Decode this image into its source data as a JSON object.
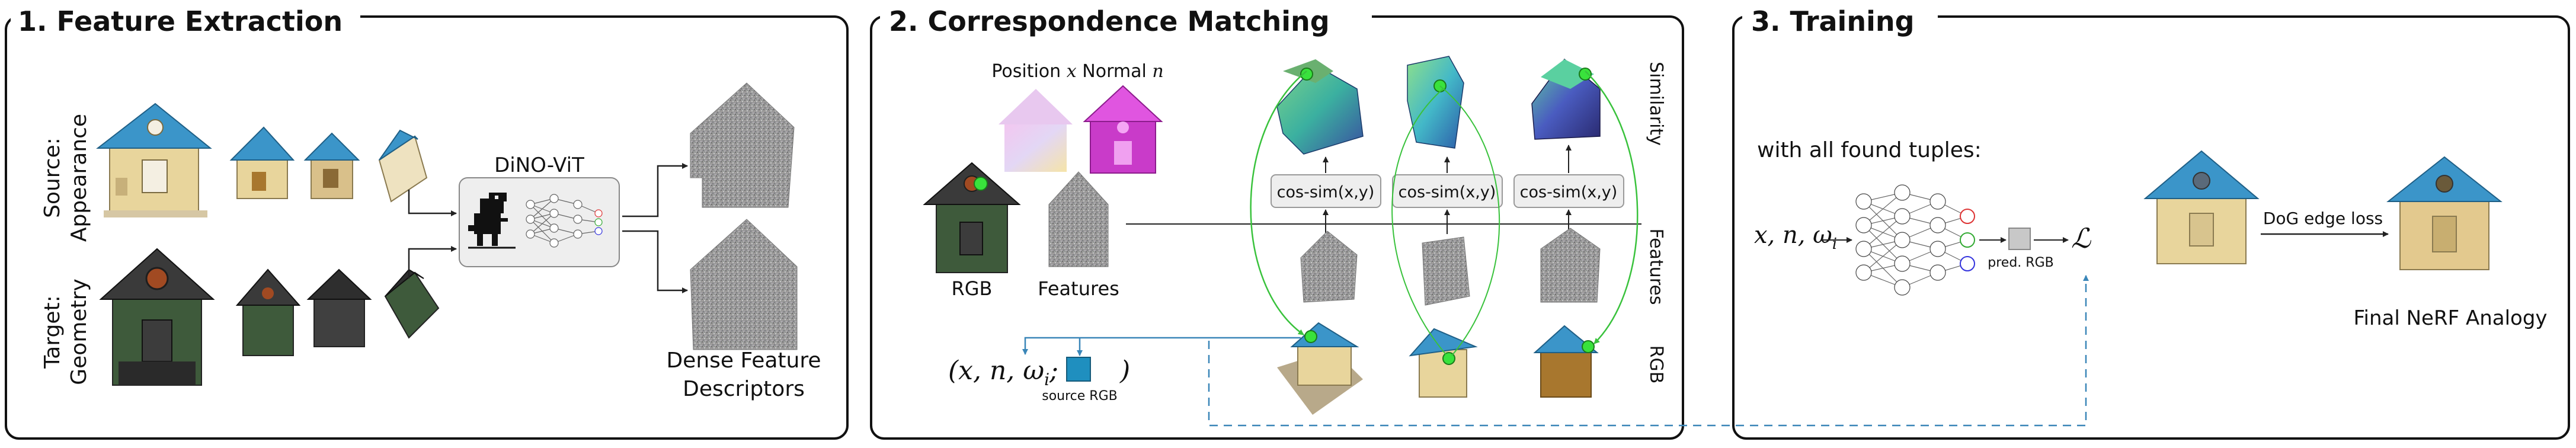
{
  "panels": [
    {
      "title": "1. Feature Extraction"
    },
    {
      "title": "2. Correspondence Matching"
    },
    {
      "title": "3. Training"
    }
  ],
  "extraction": {
    "source_label_1": "Source:",
    "source_label_2": "Appearance",
    "target_label_1": "Target:",
    "target_label_2": "Geometry",
    "model_label": "DiNO-ViT",
    "output_label_1": "Dense Feature",
    "output_label_2": "Descriptors"
  },
  "matching": {
    "position_label": "Position",
    "position_symbol": "x",
    "normal_label": "Normal",
    "normal_symbol": "n",
    "rgb_label": "RGB",
    "features_label": "Features",
    "cos_sim_label": "cos-sim(x,y)",
    "side_label_similarity": "Similarity",
    "side_label_features": "Features",
    "side_label_rgb": "RGB",
    "tuple_left": "(",
    "tuple_vars": "x, n, ω",
    "tuple_sub": "i",
    "tuple_sep": ";",
    "tuple_right": ")",
    "source_rgb_label": "source RGB"
  },
  "training": {
    "found_tuples": "with all found tuples:",
    "input_vars": "x, n, ω",
    "input_sub": "i",
    "pred_rgb_label": "pred. RGB",
    "loss_symbol": "ℒ",
    "edge_loss_label": "DoG edge loss",
    "final_label": "Final NeRF Analogy"
  },
  "colors": {
    "green_marker": "#39e23c",
    "roof_blue": "#3b95c9",
    "house_green": "#3e5a3b",
    "wall_cream": "#e9d7a2",
    "dashed_blue": "#3a86b8",
    "normal_magenta": "#d03ad0"
  }
}
